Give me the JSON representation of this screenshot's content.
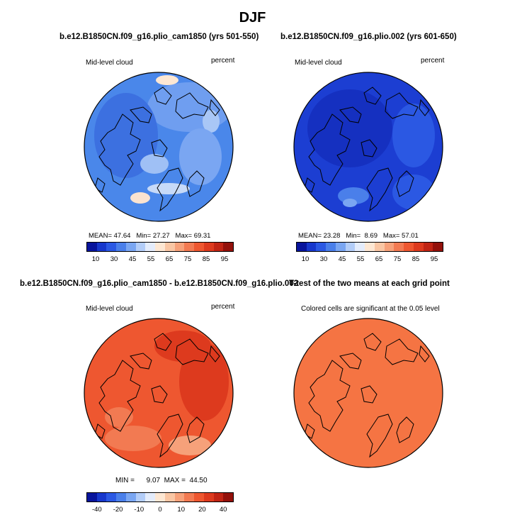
{
  "figure_title": "DJF",
  "panels": [
    {
      "title": "b.e12.B1850CN.f09_g16.plio_cam1850 (yrs 501-550)",
      "left_label": "Mid-level cloud",
      "right_label": "percent",
      "stats": {
        "mean_label": "MEAN=",
        "mean": "47.64",
        "min_label": "Min=",
        "min": "27.27",
        "max_label": "Max=",
        "max": "69.31"
      },
      "base_color": "#4a87ea"
    },
    {
      "title": "b.e12.B1850CN.f09_g16.plio.002 (yrs 601-650)",
      "left_label": "Mid-level cloud",
      "right_label": "percent",
      "stats": {
        "mean_label": "MEAN=",
        "mean": "23.28",
        "min_label": "Min=",
        "min": "8.69",
        "max_label": "Max=",
        "max": "57.01"
      },
      "base_color": "#1c3ed2"
    },
    {
      "title": "b.e12.B1850CN.f09_g16.plio_cam1850 - b.e12.B1850CN.f09_g16.plio.002",
      "left_label": "Mid-level cloud",
      "right_label": "percent",
      "stats": {
        "min_label": "MIN =",
        "min": "9.07",
        "max_label": "MAX =",
        "max": "44.50"
      },
      "base_color": "#ee5730"
    },
    {
      "title": "T-test of the two means at each grid point",
      "subtitle": "Colored cells are significant at the 0.05 level",
      "base_color": "#f57443"
    }
  ],
  "colorbars": {
    "absolute": {
      "labels": [
        "10",
        "30",
        "45",
        "55",
        "65",
        "75",
        "85",
        "95"
      ],
      "colors": [
        "#08149c",
        "#1737cc",
        "#2b58e3",
        "#4a7fea",
        "#7aa6f2",
        "#b3cdf8",
        "#e4ecfb",
        "#fde7d3",
        "#f9c6a4",
        "#f6a17a",
        "#f27a52",
        "#ee5730",
        "#dd3a1e",
        "#c02414",
        "#93110b"
      ]
    },
    "difference": {
      "labels": [
        "-40",
        "-20",
        "-10",
        "0",
        "10",
        "20",
        "40"
      ],
      "colors": [
        "#08149c",
        "#1737cc",
        "#2b58e3",
        "#4a7fea",
        "#7aa6f2",
        "#b3cdf8",
        "#e4ecfb",
        "#fde7d3",
        "#f9c6a4",
        "#f6a17a",
        "#f27a52",
        "#ee5730",
        "#dd3a1e",
        "#c02414",
        "#93110b"
      ]
    }
  },
  "chart_data": [
    {
      "type": "heatmap",
      "projection": "north polar stereographic",
      "title": "b.e12.B1850CN.f09_g16.plio_cam1850 (yrs 501-550)",
      "variable": "Mid-level cloud",
      "units": "percent",
      "mean": 47.64,
      "min": 27.27,
      "max": 69.31,
      "contour_levels": [
        10,
        15,
        20,
        25,
        30,
        35,
        40,
        45,
        50,
        55,
        60,
        65,
        70,
        75,
        80,
        85,
        90,
        95
      ]
    },
    {
      "type": "heatmap",
      "projection": "north polar stereographic",
      "title": "b.e12.B1850CN.f09_g16.plio.002 (yrs 601-650)",
      "variable": "Mid-level cloud",
      "units": "percent",
      "mean": 23.28,
      "min": 8.69,
      "max": 57.01,
      "contour_levels": [
        10,
        15,
        20,
        25,
        30,
        35,
        40,
        45,
        50,
        55,
        60,
        65,
        70,
        75,
        80,
        85,
        90,
        95
      ]
    },
    {
      "type": "heatmap",
      "projection": "north polar stereographic",
      "title": "b.e12.B1850CN.f09_g16.plio_cam1850 - b.e12.B1850CN.f09_g16.plio.002",
      "variable": "Mid-level cloud",
      "units": "percent",
      "min": 9.07,
      "max": 44.5,
      "contour_levels": [
        -40,
        -30,
        -20,
        -15,
        -10,
        -5,
        0,
        5,
        10,
        15,
        20,
        30,
        40
      ]
    },
    {
      "type": "heatmap",
      "projection": "north polar stereographic",
      "title": "T-test of the two means at each grid point",
      "note": "Colored cells are significant at the 0.05 level"
    }
  ]
}
